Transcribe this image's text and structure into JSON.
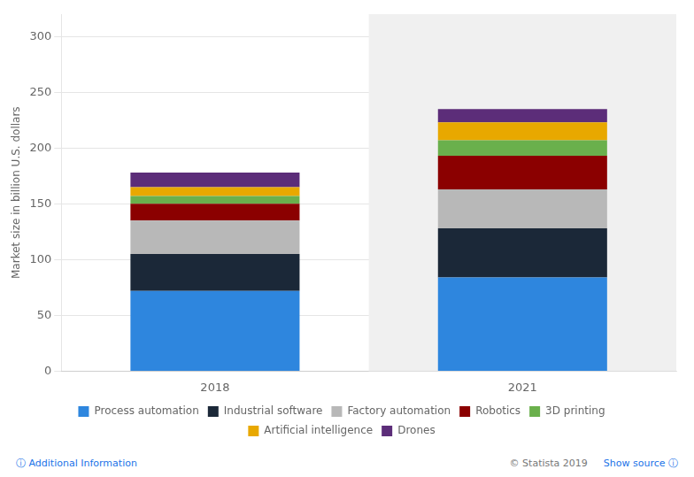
{
  "chart_data": {
    "type": "bar",
    "stacked": true,
    "categories": [
      "2018",
      "2021"
    ],
    "series": [
      {
        "name": "Process automation",
        "color": "#2e86de",
        "values": [
          72,
          84
        ]
      },
      {
        "name": "Industrial software",
        "color": "#1b2838",
        "values": [
          33,
          44
        ]
      },
      {
        "name": "Factory automation",
        "color": "#b8b8b8",
        "values": [
          30,
          35
        ]
      },
      {
        "name": "Robotics",
        "color": "#8b0000",
        "values": [
          15,
          30
        ]
      },
      {
        "name": "3D printing",
        "color": "#6ab04c",
        "values": [
          7,
          14
        ]
      },
      {
        "name": "Artificial intelligence",
        "color": "#e8a800",
        "values": [
          8,
          16
        ]
      },
      {
        "name": "Drones",
        "color": "#5c2d79",
        "values": [
          13,
          12
        ]
      }
    ],
    "ylabel": "Market size in billion U.S. dollars",
    "ylim": [
      0,
      320
    ],
    "yticks": [
      0,
      50,
      100,
      150,
      200,
      250,
      300
    ],
    "grid": true,
    "legend": "bottom",
    "annotations": [
      "ⓘ Additional Information",
      "© Statista 2019",
      "Show source ⓘ"
    ]
  }
}
